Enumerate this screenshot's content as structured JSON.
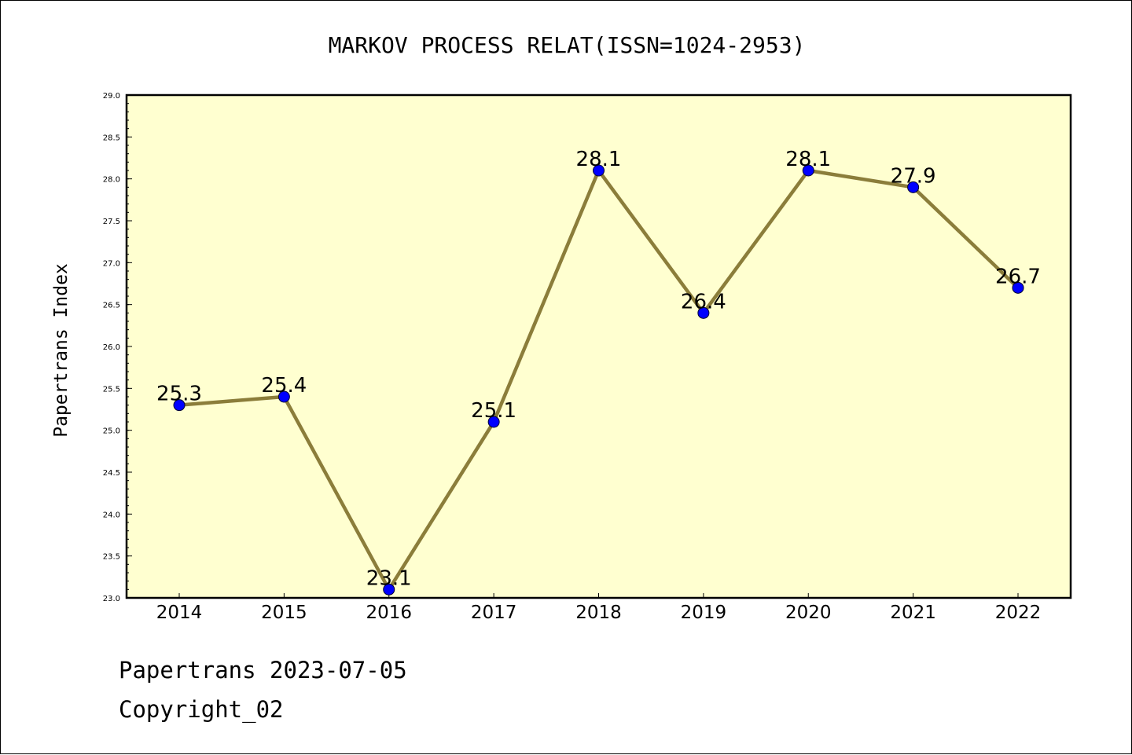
{
  "chart_data": {
    "type": "line",
    "title": "MARKOV PROCESS RELAT(ISSN=1024-2953)",
    "xlabel": "",
    "ylabel": "Papertrans Index",
    "categories": [
      "2014",
      "2015",
      "2016",
      "2017",
      "2018",
      "2019",
      "2020",
      "2021",
      "2022"
    ],
    "series": [
      {
        "name": "Papertrans Index",
        "values": [
          25.3,
          25.4,
          23.1,
          25.1,
          28.1,
          26.4,
          28.1,
          27.9,
          26.7
        ],
        "labels": [
          "25.3",
          "25.4",
          "23.1",
          "25.1",
          "28.1",
          "26.4",
          "28.1",
          "27.9",
          "26.7"
        ]
      }
    ],
    "ylim": [
      23.0,
      29.0
    ],
    "yticks": [
      "23.0",
      "23.5",
      "24.0",
      "24.5",
      "25.0",
      "25.5",
      "26.0",
      "26.5",
      "27.0",
      "27.5",
      "28.0",
      "28.5",
      "29.0"
    ],
    "grid": false,
    "legend": "none",
    "colors": {
      "plot_background": "#ffffd0",
      "line": "#8b7d3a",
      "marker": "#0000ff",
      "axis": "#000000"
    }
  },
  "footer": {
    "line1": "Papertrans 2023-07-05",
    "line2": "Copyright_02"
  }
}
